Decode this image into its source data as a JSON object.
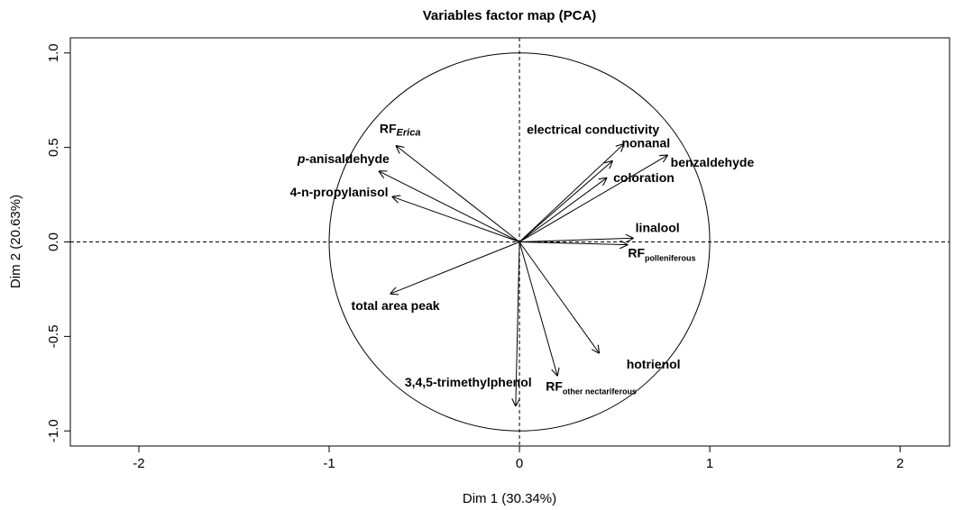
{
  "chart_data": {
    "type": "pca-variables",
    "title": "Variables factor map (PCA)",
    "x_label": "Dim 1 (30.34%)",
    "y_label": "Dim 2 (20.63%)",
    "xlim": [
      -2.36,
      2.26
    ],
    "ylim": [
      -1.08,
      1.08
    ],
    "xticks": [
      -2,
      -1,
      0,
      1,
      2
    ],
    "yticks": [
      {
        "value": -1,
        "label": "-1.0"
      },
      -0.5,
      {
        "value": 0,
        "label": "0.0"
      },
      0.5,
      {
        "value": 1,
        "label": "1.0"
      }
    ],
    "color": "#000000",
    "variables": [
      {
        "label": "RF",
        "subscript": "Erica",
        "x": -0.65,
        "y": 0.51
      },
      {
        "label_italic": "p",
        "label": "-anisaldehyde",
        "x": -0.74,
        "y": 0.375
      },
      {
        "label": "4-n-propylanisol",
        "x": -0.67,
        "y": 0.24
      },
      {
        "label": "total area peak",
        "x": -0.68,
        "y": -0.275
      },
      {
        "label": "3,4,5-trimethylphenol",
        "x": -0.02,
        "y": -0.87
      },
      {
        "label": "RF",
        "subscript": "other nectariferous",
        "x": 0.2,
        "y": -0.71
      },
      {
        "label": "hotrienol",
        "x": 0.42,
        "y": -0.59
      },
      {
        "label": "linalool",
        "x": 0.6,
        "y": 0.02
      },
      {
        "label": "RF",
        "subscript": "polleniferous",
        "x": 0.57,
        "y": -0.015
      },
      {
        "label": "electrical conductivity",
        "x": 0.55,
        "y": 0.52
      },
      {
        "label": "nonanal",
        "x": 0.49,
        "y": 0.43
      },
      {
        "label": "benzaldehyde",
        "x": 0.78,
        "y": 0.46
      },
      {
        "label": "coloration",
        "x": 0.46,
        "y": 0.34
      }
    ]
  }
}
